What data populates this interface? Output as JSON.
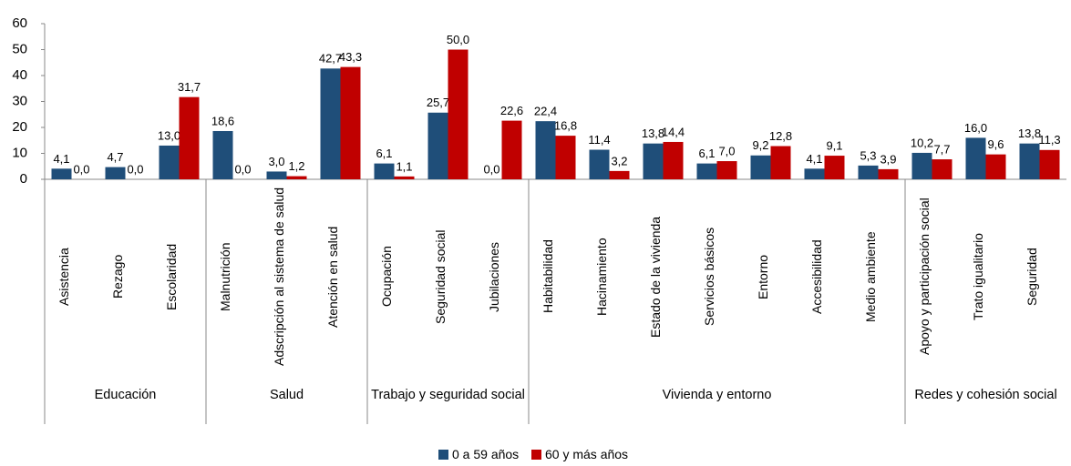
{
  "chart_data": {
    "type": "bar",
    "groups": [
      {
        "name": "Educación",
        "categories": [
          "Asistencia",
          "Rezago",
          "Escolaridad"
        ]
      },
      {
        "name": "Salud",
        "categories": [
          "Malnutrición",
          "Adscripción al sistema de salud",
          "Atención en salud"
        ]
      },
      {
        "name": "Trabajo y seguridad social",
        "categories": [
          "Ocupación",
          "Seguridad social",
          "Jubilaciones"
        ]
      },
      {
        "name": "Vivienda y entorno",
        "categories": [
          "Habitabilidad",
          "Hacinamiento",
          "Estado de la vivienda",
          "Servicios básicos",
          "Entorno",
          "Accesibilidad",
          "Medio ambiente"
        ]
      },
      {
        "name": "Redes y cohesión social",
        "categories": [
          "Apoyo y participación social",
          "Trato igualitario",
          "Seguridad"
        ]
      }
    ],
    "series": [
      {
        "name": "0 a 59 años",
        "color": "#1f4e79",
        "values": [
          4.1,
          4.7,
          13.0,
          18.6,
          3.0,
          42.7,
          6.1,
          25.7,
          0.0,
          22.4,
          11.4,
          13.8,
          6.1,
          9.2,
          4.1,
          5.3,
          10.2,
          16.0,
          13.8
        ],
        "value_labels": [
          "4,1",
          "4,7",
          "13,0",
          "18,6",
          "3,0",
          "42,7",
          "6,1",
          "25,7",
          "0,0",
          "22,4",
          "11,4",
          "13,8",
          "6,1",
          "9,2",
          "4,1",
          "5,3",
          "10,2",
          "16,0",
          "13,8"
        ]
      },
      {
        "name": "60 y más años",
        "color": "#c00000",
        "values": [
          0.0,
          0.0,
          31.7,
          0.0,
          1.2,
          43.3,
          1.1,
          50.0,
          22.6,
          16.8,
          3.2,
          14.4,
          7.0,
          12.8,
          9.1,
          3.9,
          7.7,
          9.6,
          11.3
        ],
        "value_labels": [
          "0,0",
          "0,0",
          "31,7",
          "0,0",
          "1,2",
          "43,3",
          "1,1",
          "50,0",
          "22,6",
          "16,8",
          "3,2",
          "14,4",
          "7,0",
          "12,8",
          "9,1",
          "3,9",
          "7,7",
          "9,6",
          "11,3"
        ]
      }
    ],
    "ylim": [
      0,
      60
    ],
    "yticks": [
      0,
      10,
      20,
      30,
      40,
      50,
      60
    ],
    "grid": false,
    "legend": "bottom"
  }
}
